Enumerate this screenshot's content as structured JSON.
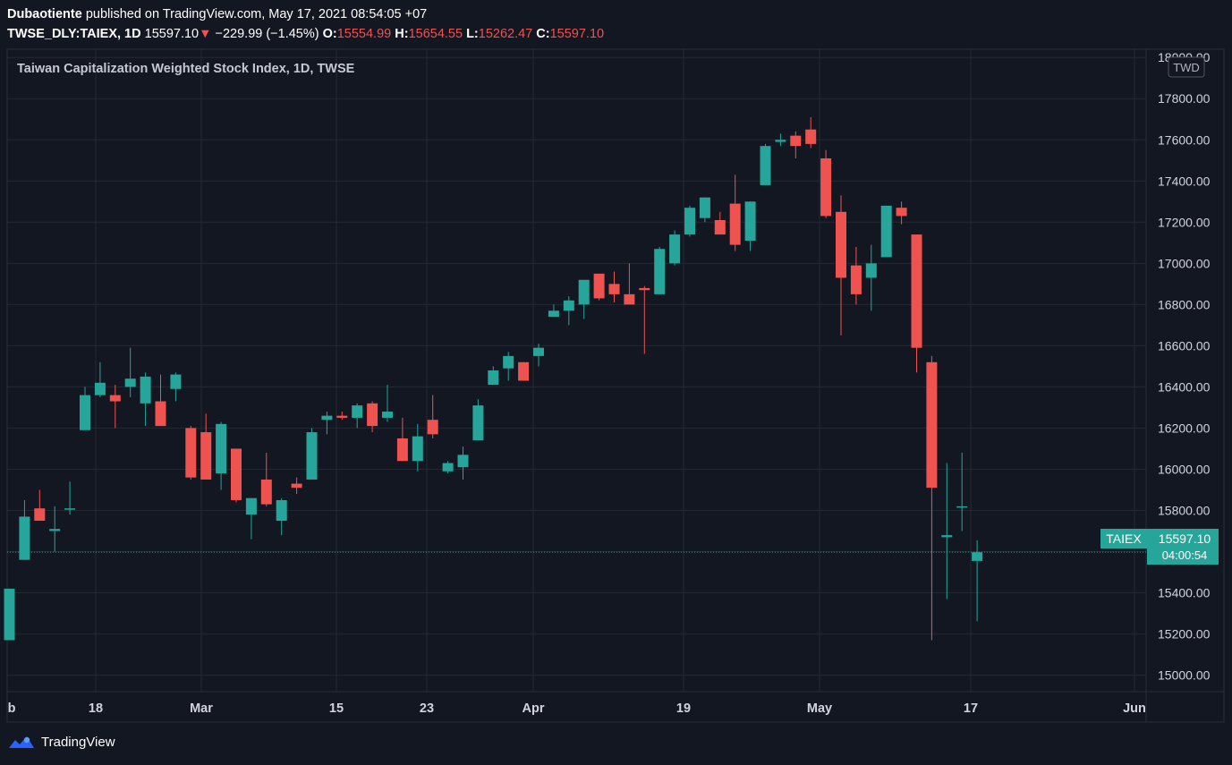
{
  "header": {
    "author": "Dubaotiente",
    "published_text": "published on TradingView.com, May 17, 2021 08:54:05 +07",
    "symbol": "TWSE_DLY:TAIEX, 1D",
    "last": "15597.10",
    "change": "−229.99 (−1.45%)",
    "o_label": "O:",
    "o_value": "15554.99",
    "h_label": "H:",
    "h_value": "15654.55",
    "l_label": "L:",
    "l_value": "15262.47",
    "c_label": "C:",
    "c_value": "15597.10"
  },
  "chart_title": "Taiwan Capitalization Weighted Stock Index, 1D, TWSE",
  "currency_badge": "TWD",
  "price_label": {
    "name": "TAIEX",
    "value": "15597.10",
    "countdown": "04:00:54"
  },
  "footer": {
    "brand": "TradingView"
  },
  "colors": {
    "background": "#131722",
    "up": "#26a69a",
    "down": "#ef5350",
    "grid": "#242832",
    "text": "#d1d4dc"
  },
  "chart_data": {
    "type": "candlestick",
    "title": "Taiwan Capitalization Weighted Stock Index, 1D, TWSE",
    "ylim": [
      14920,
      18040
    ],
    "y_ticks": [
      15000,
      15200,
      15400,
      15600,
      15800,
      16000,
      16200,
      16400,
      16600,
      16800,
      17000,
      17200,
      17400,
      17600,
      17800,
      18000
    ],
    "x_tick_labels": [
      "b",
      "18",
      "Mar",
      "15",
      "23",
      "Apr",
      "19",
      "May",
      "17",
      "Jun"
    ],
    "grid": true,
    "current_price": 15597.1,
    "candles": [
      {
        "o": 15170,
        "h": 15420,
        "l": 15170,
        "c": 15420
      },
      {
        "o": 15560,
        "h": 15850,
        "l": 15560,
        "c": 15770
      },
      {
        "o": 15810,
        "h": 15900,
        "l": 15750,
        "c": 15750
      },
      {
        "o": 15700,
        "h": 15820,
        "l": 15600,
        "c": 15710
      },
      {
        "o": 15810,
        "h": 15940,
        "l": 15780,
        "c": 15810
      },
      {
        "o": 16190,
        "h": 16400,
        "l": 16190,
        "c": 16360
      },
      {
        "o": 16360,
        "h": 16520,
        "l": 16350,
        "c": 16420
      },
      {
        "o": 16360,
        "h": 16410,
        "l": 16200,
        "c": 16330
      },
      {
        "o": 16400,
        "h": 16590,
        "l": 16350,
        "c": 16440
      },
      {
        "o": 16320,
        "h": 16470,
        "l": 16210,
        "c": 16450
      },
      {
        "o": 16330,
        "h": 16460,
        "l": 16210,
        "c": 16210
      },
      {
        "o": 16390,
        "h": 16470,
        "l": 16330,
        "c": 16460
      },
      {
        "o": 16200,
        "h": 16210,
        "l": 15950,
        "c": 15960
      },
      {
        "o": 16180,
        "h": 16270,
        "l": 15950,
        "c": 15950
      },
      {
        "o": 15980,
        "h": 16230,
        "l": 15900,
        "c": 16220
      },
      {
        "o": 16100,
        "h": 16100,
        "l": 15840,
        "c": 15850
      },
      {
        "o": 15780,
        "h": 15860,
        "l": 15660,
        "c": 15860
      },
      {
        "o": 15950,
        "h": 16080,
        "l": 15820,
        "c": 15830
      },
      {
        "o": 15750,
        "h": 15860,
        "l": 15680,
        "c": 15850
      },
      {
        "o": 15930,
        "h": 15960,
        "l": 15880,
        "c": 15910
      },
      {
        "o": 15950,
        "h": 16200,
        "l": 15950,
        "c": 16180
      },
      {
        "o": 16240,
        "h": 16280,
        "l": 16170,
        "c": 16260
      },
      {
        "o": 16260,
        "h": 16280,
        "l": 16240,
        "c": 16250
      },
      {
        "o": 16250,
        "h": 16320,
        "l": 16200,
        "c": 16310
      },
      {
        "o": 16320,
        "h": 16330,
        "l": 16180,
        "c": 16210
      },
      {
        "o": 16250,
        "h": 16410,
        "l": 16230,
        "c": 16280
      },
      {
        "o": 16150,
        "h": 16250,
        "l": 16040,
        "c": 16040
      },
      {
        "o": 16040,
        "h": 16220,
        "l": 15990,
        "c": 16160
      },
      {
        "o": 16240,
        "h": 16360,
        "l": 16150,
        "c": 16170
      },
      {
        "o": 15990,
        "h": 16040,
        "l": 15980,
        "c": 16030
      },
      {
        "o": 16010,
        "h": 16110,
        "l": 15950,
        "c": 16070
      },
      {
        "o": 16140,
        "h": 16340,
        "l": 16140,
        "c": 16310
      },
      {
        "o": 16410,
        "h": 16500,
        "l": 16410,
        "c": 16480
      },
      {
        "o": 16490,
        "h": 16570,
        "l": 16430,
        "c": 16550
      },
      {
        "o": 16520,
        "h": 16520,
        "l": 16430,
        "c": 16430
      },
      {
        "o": 16550,
        "h": 16610,
        "l": 16500,
        "c": 16590
      },
      {
        "o": 16740,
        "h": 16800,
        "l": 16740,
        "c": 16770
      },
      {
        "o": 16770,
        "h": 16840,
        "l": 16700,
        "c": 16820
      },
      {
        "o": 16800,
        "h": 16900,
        "l": 16730,
        "c": 16920
      },
      {
        "o": 16950,
        "h": 16950,
        "l": 16820,
        "c": 16830
      },
      {
        "o": 16900,
        "h": 16960,
        "l": 16810,
        "c": 16850
      },
      {
        "o": 16850,
        "h": 17000,
        "l": 16820,
        "c": 16800
      },
      {
        "o": 16880,
        "h": 16890,
        "l": 16560,
        "c": 16870
      },
      {
        "o": 16850,
        "h": 17080,
        "l": 16850,
        "c": 17070
      },
      {
        "o": 17000,
        "h": 17160,
        "l": 16990,
        "c": 17140
      },
      {
        "o": 17140,
        "h": 17280,
        "l": 17130,
        "c": 17270
      },
      {
        "o": 17220,
        "h": 17320,
        "l": 17200,
        "c": 17320
      },
      {
        "o": 17210,
        "h": 17250,
        "l": 17150,
        "c": 17140
      },
      {
        "o": 17290,
        "h": 17430,
        "l": 17060,
        "c": 17090
      },
      {
        "o": 17110,
        "h": 17300,
        "l": 17060,
        "c": 17300
      },
      {
        "o": 17380,
        "h": 17580,
        "l": 17380,
        "c": 17570
      },
      {
        "o": 17590,
        "h": 17630,
        "l": 17570,
        "c": 17600
      },
      {
        "o": 17620,
        "h": 17640,
        "l": 17510,
        "c": 17570
      },
      {
        "o": 17650,
        "h": 17710,
        "l": 17560,
        "c": 17580
      },
      {
        "o": 17510,
        "h": 17550,
        "l": 17220,
        "c": 17230
      },
      {
        "o": 17250,
        "h": 17330,
        "l": 16650,
        "c": 16930
      },
      {
        "o": 16990,
        "h": 17080,
        "l": 16800,
        "c": 16850
      },
      {
        "o": 16930,
        "h": 17090,
        "l": 16770,
        "c": 17000
      },
      {
        "o": 17030,
        "h": 17280,
        "l": 17030,
        "c": 17280
      },
      {
        "o": 17270,
        "h": 17300,
        "l": 17190,
        "c": 17230
      },
      {
        "o": 17140,
        "h": 17140,
        "l": 16470,
        "c": 16590
      },
      {
        "o": 16520,
        "h": 16550,
        "l": 15170,
        "c": 15910
      },
      {
        "o": 15670,
        "h": 16030,
        "l": 15370,
        "c": 15680
      },
      {
        "o": 15820,
        "h": 16080,
        "l": 15700,
        "c": 15820
      },
      {
        "o": 15555,
        "h": 15655,
        "l": 15262,
        "c": 15597
      }
    ]
  }
}
